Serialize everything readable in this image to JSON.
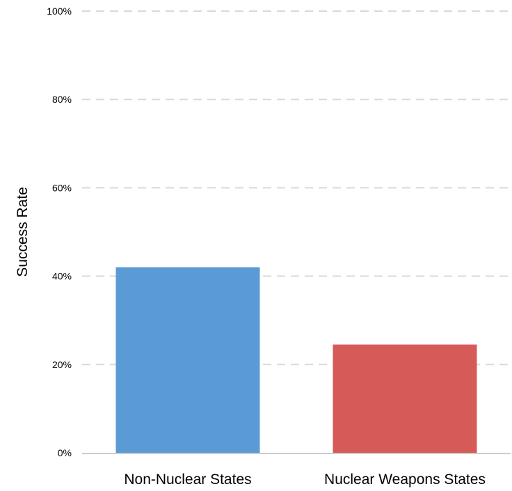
{
  "chart_data": {
    "type": "bar",
    "title": "",
    "xlabel": "",
    "ylabel": "Success Rate",
    "categories": [
      "Non-Nuclear States",
      "Nuclear Weapons States"
    ],
    "values": [
      0.42,
      0.245
    ],
    "bar_colors": [
      "#5b9bd5",
      "#d65a58"
    ],
    "ylim": [
      0,
      1
    ],
    "y_ticks": [
      {
        "value": 0,
        "label": "0%"
      },
      {
        "value": 0.2,
        "label": "20%"
      },
      {
        "value": 0.4,
        "label": "40%"
      },
      {
        "value": 0.6,
        "label": "60%"
      },
      {
        "value": 0.8,
        "label": "80%"
      },
      {
        "value": 1.0,
        "label": "100%"
      }
    ],
    "grid": true,
    "grid_style": "dashed",
    "grid_color": "#d9d9d9",
    "baseline_color": "#cccccc"
  }
}
